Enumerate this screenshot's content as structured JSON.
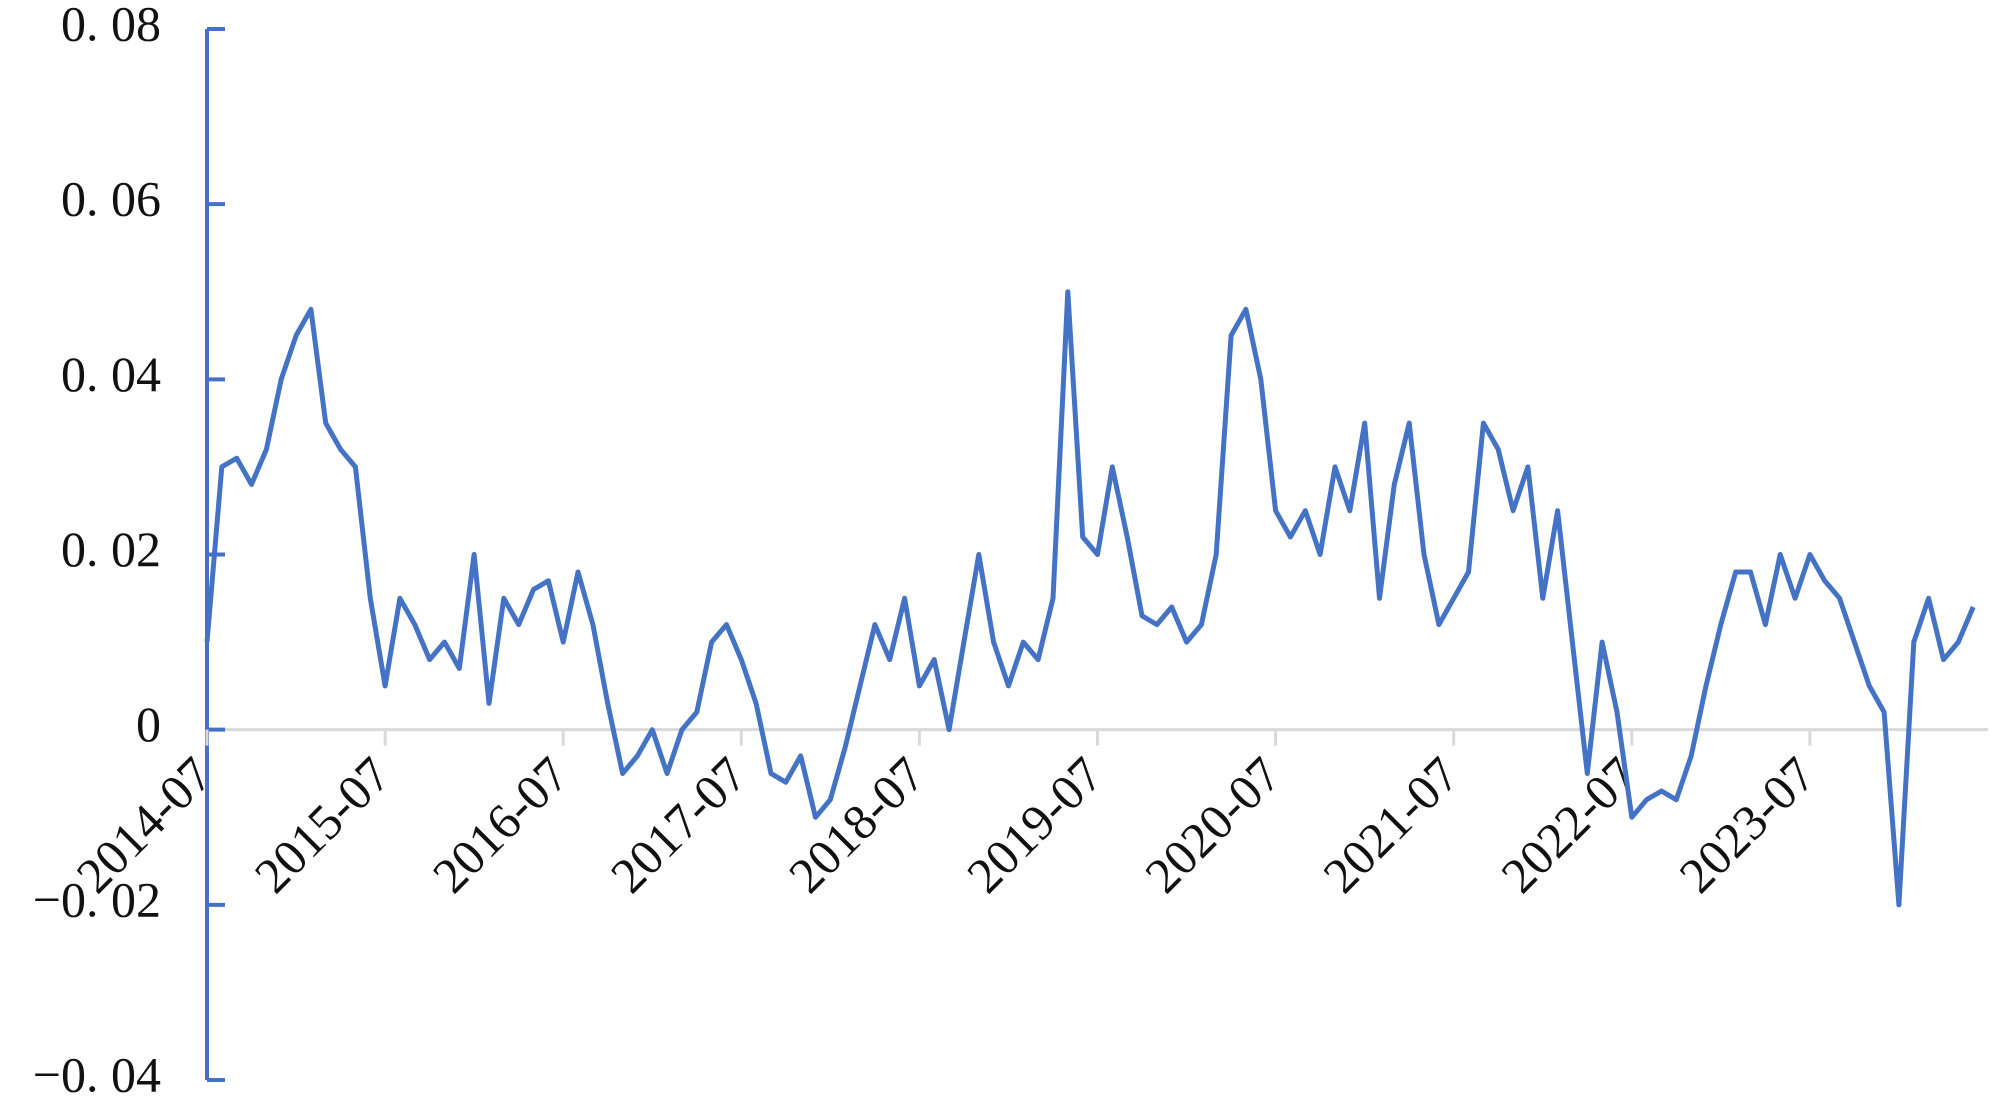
{
  "chart_data": {
    "type": "line",
    "x": [
      "2014-07",
      "2014-08",
      "2014-09",
      "2014-10",
      "2014-11",
      "2014-12",
      "2015-01",
      "2015-02",
      "2015-03",
      "2015-04",
      "2015-05",
      "2015-06",
      "2015-07",
      "2015-08",
      "2015-09",
      "2015-10",
      "2015-11",
      "2015-12",
      "2016-01",
      "2016-02",
      "2016-03",
      "2016-04",
      "2016-05",
      "2016-06",
      "2016-07",
      "2016-08",
      "2016-09",
      "2016-10",
      "2016-11",
      "2016-12",
      "2017-01",
      "2017-02",
      "2017-03",
      "2017-04",
      "2017-05",
      "2017-06",
      "2017-07",
      "2017-08",
      "2017-09",
      "2017-10",
      "2017-11",
      "2017-12",
      "2018-01",
      "2018-02",
      "2018-03",
      "2018-04",
      "2018-05",
      "2018-06",
      "2018-07",
      "2018-08",
      "2018-09",
      "2018-10",
      "2018-11",
      "2018-12",
      "2019-01",
      "2019-02",
      "2019-03",
      "2019-04",
      "2019-05",
      "2019-06",
      "2019-07",
      "2019-08",
      "2019-09",
      "2019-10",
      "2019-11",
      "2019-12",
      "2020-01",
      "2020-02",
      "2020-03",
      "2020-04",
      "2020-05",
      "2020-06",
      "2020-07",
      "2020-08",
      "2020-09",
      "2020-10",
      "2020-11",
      "2020-12",
      "2021-01",
      "2021-02",
      "2021-03",
      "2021-04",
      "2021-05",
      "2021-06",
      "2021-07",
      "2021-08",
      "2021-09",
      "2021-10",
      "2021-11",
      "2021-12",
      "2022-01",
      "2022-02",
      "2022-03",
      "2022-04",
      "2022-05",
      "2022-06",
      "2022-07",
      "2022-08",
      "2022-09",
      "2022-10",
      "2022-11",
      "2022-12",
      "2023-01",
      "2023-02",
      "2023-03",
      "2023-04",
      "2023-05",
      "2023-06",
      "2023-07",
      "2023-08",
      "2023-09",
      "2023-10",
      "2023-11",
      "2023-12",
      "2024-01",
      "2024-02",
      "2024-03",
      "2024-04",
      "2024-05",
      "2024-06"
    ],
    "series": [
      {
        "color": "#4472c4",
        "values": [
          0.01,
          0.03,
          0.031,
          0.028,
          0.032,
          0.04,
          0.045,
          0.048,
          0.035,
          0.032,
          0.03,
          0.015,
          0.005,
          0.015,
          0.012,
          0.008,
          0.01,
          0.007,
          0.02,
          0.003,
          0.015,
          0.012,
          0.016,
          0.017,
          0.01,
          0.018,
          0.012,
          0.003,
          -0.005,
          -0.003,
          0,
          -0.005,
          0,
          0.002,
          0.01,
          0.012,
          0.008,
          0.003,
          -0.005,
          -0.006,
          -0.003,
          -0.01,
          -0.008,
          -0.002,
          0.005,
          0.012,
          0.008,
          0.015,
          0.005,
          0.008,
          0,
          0.01,
          0.02,
          0.01,
          0.005,
          0.01,
          0.008,
          0.015,
          0.05,
          0.022,
          0.02,
          0.03,
          0.022,
          0.013,
          0.012,
          0.014,
          0.01,
          0.012,
          0.02,
          0.045,
          0.048,
          0.04,
          0.025,
          0.022,
          0.025,
          0.02,
          0.03,
          0.025,
          0.035,
          0.015,
          0.028,
          0.035,
          0.02,
          0.012,
          0.015,
          0.018,
          0.035,
          0.032,
          0.025,
          0.03,
          0.015,
          0.025,
          0.01,
          -0.005,
          0.01,
          0.002,
          -0.01,
          -0.008,
          -0.007,
          -0.008,
          -0.003,
          0.005,
          0.012,
          0.018,
          0.018,
          0.012,
          0.02,
          0.015,
          0.02,
          0.017,
          0.015,
          0.01,
          0.005,
          0.002,
          -0.02,
          0.01,
          0.015,
          0.008,
          0.01,
          0.014
        ]
      }
    ],
    "xlim": [
      "2014-07",
      "2024-07"
    ],
    "xticks": [
      "2014-07",
      "2015-07",
      "2016-07",
      "2017-07",
      "2018-07",
      "2019-07",
      "2020-07",
      "2021-07",
      "2022-07",
      "2023-07"
    ],
    "ylim": [
      -0.04,
      0.08
    ],
    "yticks": [
      {
        "value": -0.04,
        "label": "−0. 04"
      },
      {
        "value": -0.02,
        "label": "−0. 02"
      },
      0,
      {
        "value": 0.02,
        "label": "0. 02"
      },
      {
        "value": 0.04,
        "label": "0. 04"
      },
      {
        "value": 0.06,
        "label": "0. 06"
      },
      {
        "value": 0.08,
        "label": "0. 08"
      }
    ]
  }
}
